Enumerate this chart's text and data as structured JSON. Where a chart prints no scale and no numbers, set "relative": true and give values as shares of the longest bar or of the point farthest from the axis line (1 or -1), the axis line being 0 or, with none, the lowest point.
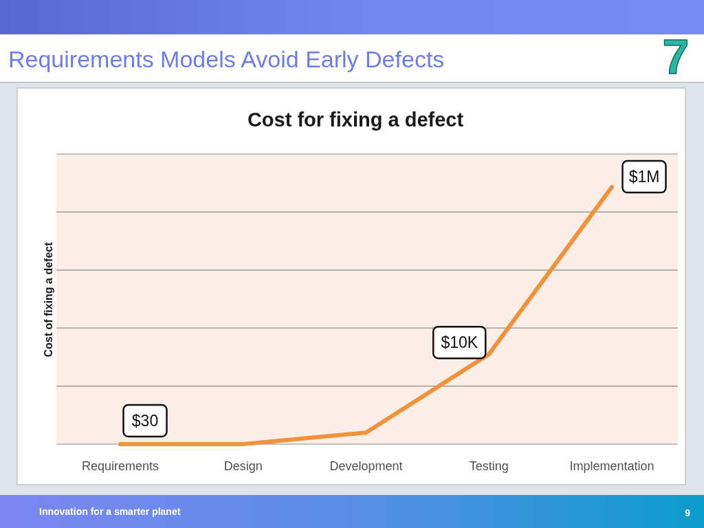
{
  "chart_data": {
    "type": "line",
    "title": "Requirements Models Avoid Early Defects",
    "subtitle": "Cost for fixing a defect",
    "ylabel": "Cost of fixing a defect",
    "categories": [
      "Requirements",
      "Design",
      "Development",
      "Testing",
      "Implementation"
    ],
    "series": [
      {
        "color": "#f0923a",
        "values": [
          0,
          0,
          0.045,
          0.35,
          1
        ]
      }
    ],
    "relative": true,
    "grid": true,
    "annotations": [
      "7",
      {
        "text": "$30",
        "x": "Requirements",
        "y": 0
      },
      {
        "text": "$10K",
        "x": "Testing",
        "y": 0.35
      },
      {
        "text": "$1M",
        "x": "Implementation",
        "y": 1
      },
      "Innovation for a smarter planet",
      "9"
    ]
  }
}
